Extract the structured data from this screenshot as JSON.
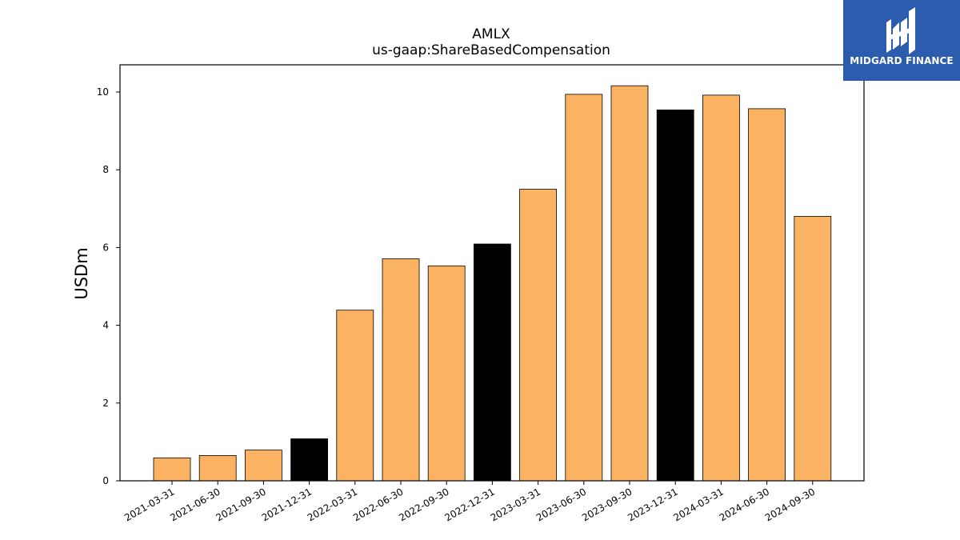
{
  "chart_data": {
    "type": "bar",
    "title": "AMLX",
    "subtitle": "us-gaap:ShareBasedCompensation",
    "ylabel": "USDm",
    "xlabel": "",
    "ylim": [
      0,
      10.7
    ],
    "yticks": [
      0,
      2,
      4,
      6,
      8,
      10
    ],
    "categories": [
      "2021-03-31",
      "2021-06-30",
      "2021-09-30",
      "2021-12-31",
      "2022-03-31",
      "2022-06-30",
      "2022-09-30",
      "2022-12-31",
      "2023-03-31",
      "2023-06-30",
      "2023-09-30",
      "2023-12-31",
      "2024-03-31",
      "2024-06-30",
      "2024-09-30"
    ],
    "values": [
      0.59,
      0.65,
      0.79,
      1.08,
      4.39,
      5.71,
      5.53,
      6.09,
      7.5,
      9.94,
      10.16,
      9.54,
      9.92,
      9.57,
      6.8
    ],
    "bar_colors": [
      "#fbb363",
      "#fbb363",
      "#fbb363",
      "#000000",
      "#fbb363",
      "#fbb363",
      "#fbb363",
      "#000000",
      "#fbb363",
      "#fbb363",
      "#fbb363",
      "#000000",
      "#fbb363",
      "#fbb363",
      "#fbb363"
    ],
    "grid": false,
    "legend": "none"
  },
  "brand": {
    "name": "MIDGARD FINANCE",
    "color": "#2b5cad",
    "icon": "midgard-logo-icon"
  }
}
